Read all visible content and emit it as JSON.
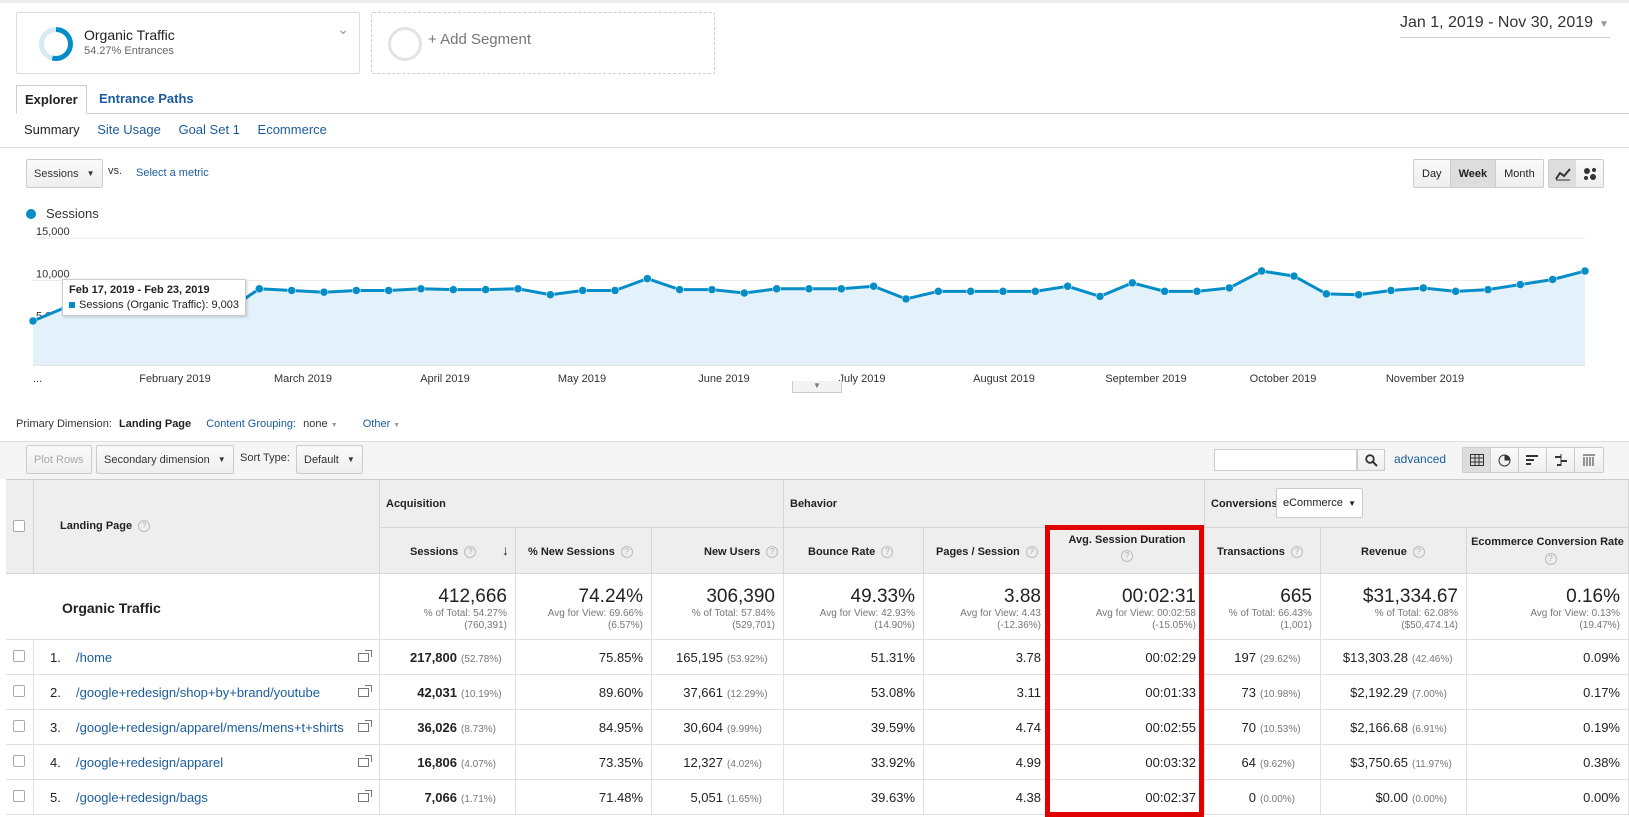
{
  "segments": {
    "active": {
      "name": "Organic Traffic",
      "share": "54.27% Entrances"
    },
    "add_label": "+ Add Segment"
  },
  "date_range": "Jan 1, 2019 - Nov 30, 2019",
  "tabs": [
    "Explorer",
    "Entrance Paths"
  ],
  "subtabs": [
    "Summary",
    "Site Usage",
    "Goal Set 1",
    "Ecommerce"
  ],
  "chart_controls": {
    "metric": "Sessions",
    "vs": "vs.",
    "select_metric": "Select a metric",
    "periods": [
      "Day",
      "Week",
      "Month"
    ],
    "active_period": "Week"
  },
  "chart_data": {
    "type": "line",
    "title": "",
    "series": [
      {
        "name": "Sessions",
        "values": [
          5200,
          6800,
          7600,
          7900,
          6400,
          6400,
          6400,
          9003,
          8800,
          8600,
          8800,
          8800,
          9000,
          8900,
          8900,
          9000,
          8300,
          8800,
          8800,
          10200,
          8900,
          8900,
          8500,
          9000,
          9000,
          9000,
          9300,
          7800,
          8700,
          8700,
          8700,
          8700,
          9300,
          8100,
          9700,
          8700,
          8700,
          9100,
          11100,
          10500,
          8400,
          8300,
          8800,
          9100,
          8700,
          8900,
          9500,
          10100,
          11100
        ]
      }
    ],
    "x_tick_labels": [
      "...",
      "February 2019",
      "March 2019",
      "April 2019",
      "May 2019",
      "June 2019",
      "July 2019",
      "August 2019",
      "September 2019",
      "October 2019",
      "November 2019"
    ],
    "y_tick_labels": [
      "15,000",
      "10,000",
      "5,000"
    ],
    "ylim": [
      0,
      15000
    ],
    "color": "#058dc7",
    "fill": "#e3f2fa",
    "tooltip": {
      "range": "Feb 17, 2019 - Feb 23, 2019",
      "label": "Sessions (Organic Traffic): 9,003"
    }
  },
  "primary_dimension": {
    "label": "Primary Dimension:",
    "value": "Landing Page",
    "content_grouping_label": "Content Grouping:",
    "content_grouping_value": "none",
    "other": "Other"
  },
  "toolbar": {
    "plot_rows": "Plot Rows",
    "secondary_dimension": "Secondary dimension",
    "sort_type_label": "Sort Type:",
    "sort_type": "Default",
    "advanced": "advanced"
  },
  "table": {
    "groups": {
      "acquisition": "Acquisition",
      "behavior": "Behavior",
      "conversions": "Conversions",
      "conversions_select": "eCommerce"
    },
    "dim_header": "Landing Page",
    "columns": [
      "Sessions",
      "% New Sessions",
      "New Users",
      "Bounce Rate",
      "Pages / Session",
      "Avg. Session Duration",
      "Transactions",
      "Revenue",
      "Ecommerce Conversion Rate"
    ],
    "totals": {
      "label": "Organic Traffic",
      "cells": [
        {
          "value": "412,666",
          "sub1": "% of Total: 54.27%",
          "sub2": "(760,391)"
        },
        {
          "value": "74.24%",
          "sub1": "Avg for View: 69.66%",
          "sub2": "(6.57%)"
        },
        {
          "value": "306,390",
          "sub1": "% of Total: 57.84%",
          "sub2": "(529,701)"
        },
        {
          "value": "49.33%",
          "sub1": "Avg for View: 42.93%",
          "sub2": "(14.90%)"
        },
        {
          "value": "3.88",
          "sub1": "Avg for View: 4.43",
          "sub2": "(-12.36%)"
        },
        {
          "value": "00:02:31",
          "sub1": "Avg for View: 00:02:58",
          "sub2": "(-15.05%)"
        },
        {
          "value": "665",
          "sub1": "% of Total: 66.43%",
          "sub2": "(1,001)"
        },
        {
          "value": "$31,334.67",
          "sub1": "% of Total: 62.08%",
          "sub2": "($50,474.14)"
        },
        {
          "value": "0.16%",
          "sub1": "Avg for View: 0.13%",
          "sub2": "(19.47%)"
        }
      ]
    },
    "rows": [
      {
        "n": "1.",
        "page": "/home",
        "sessions": "217,800",
        "sessions_pct": "(52.78%)",
        "new_sessions": "75.85%",
        "new_users": "165,195",
        "new_users_pct": "(53.92%)",
        "bounce": "51.31%",
        "pages": "3.78",
        "duration": "00:02:29",
        "transactions": "197",
        "transactions_pct": "(29.62%)",
        "revenue": "$13,303.28",
        "revenue_pct": "(42.46%)",
        "conv": "0.09%"
      },
      {
        "n": "2.",
        "page": "/google+redesign/shop+by+brand/youtube",
        "sessions": "42,031",
        "sessions_pct": "(10.19%)",
        "new_sessions": "89.60%",
        "new_users": "37,661",
        "new_users_pct": "(12.29%)",
        "bounce": "53.08%",
        "pages": "3.11",
        "duration": "00:01:33",
        "transactions": "73",
        "transactions_pct": "(10.98%)",
        "revenue": "$2,192.29",
        "revenue_pct": "(7.00%)",
        "conv": "0.17%"
      },
      {
        "n": "3.",
        "page": "/google+redesign/apparel/mens/mens+t+shirts",
        "sessions": "36,026",
        "sessions_pct": "(8.73%)",
        "new_sessions": "84.95%",
        "new_users": "30,604",
        "new_users_pct": "(9.99%)",
        "bounce": "39.59%",
        "pages": "4.74",
        "duration": "00:02:55",
        "transactions": "70",
        "transactions_pct": "(10.53%)",
        "revenue": "$2,166.68",
        "revenue_pct": "(6.91%)",
        "conv": "0.19%"
      },
      {
        "n": "4.",
        "page": "/google+redesign/apparel",
        "sessions": "16,806",
        "sessions_pct": "(4.07%)",
        "new_sessions": "73.35%",
        "new_users": "12,327",
        "new_users_pct": "(4.02%)",
        "bounce": "33.92%",
        "pages": "4.99",
        "duration": "00:03:32",
        "transactions": "64",
        "transactions_pct": "(9.62%)",
        "revenue": "$3,750.65",
        "revenue_pct": "(11.97%)",
        "conv": "0.38%"
      },
      {
        "n": "5.",
        "page": "/google+redesign/bags",
        "sessions": "7,066",
        "sessions_pct": "(1.71%)",
        "new_sessions": "71.48%",
        "new_users": "5,051",
        "new_users_pct": "(1.65%)",
        "bounce": "39.63%",
        "pages": "4.38",
        "duration": "00:02:37",
        "transactions": "0",
        "transactions_pct": "(0.00%)",
        "revenue": "$0.00",
        "revenue_pct": "(0.00%)",
        "conv": "0.00%"
      }
    ]
  }
}
